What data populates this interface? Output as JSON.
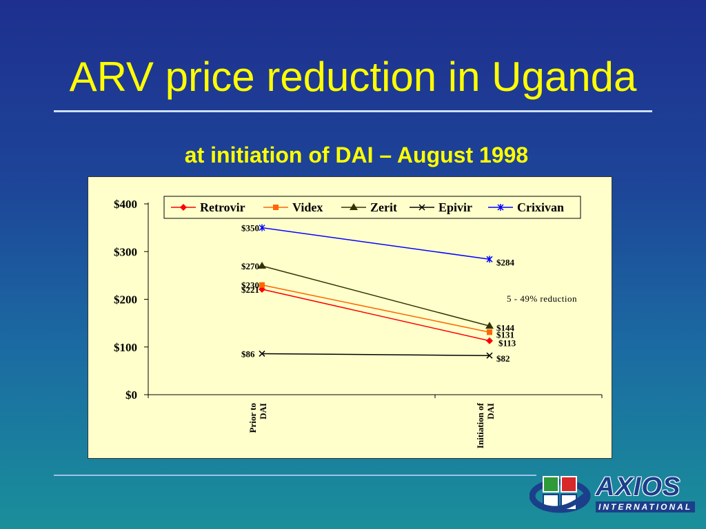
{
  "slide": {
    "title": "ARV price reduction in Uganda",
    "subtitle": "at initiation of DAI – August 1998"
  },
  "logo": {
    "name": "AXIOS",
    "tagline": "INTERNATIONAL"
  },
  "colors": {
    "background_top": "#1e2f8f",
    "background_bottom": "#1a8f9a",
    "title": "#ffff00",
    "panel": "#ffffcc"
  },
  "chart_data": {
    "type": "line",
    "categories": [
      "Prior to DAI",
      "Initiation of DAI"
    ],
    "ylim": [
      0,
      400
    ],
    "yticks": [
      "$0",
      "$100",
      "$200",
      "$300",
      "$400"
    ],
    "ytick_values": [
      0,
      100,
      200,
      300,
      400
    ],
    "legend_position": "top",
    "annotation": "5 - 49% reduction",
    "series": [
      {
        "name": "Retrovir",
        "values": [
          221,
          113
        ],
        "labels": [
          "$221",
          "$113"
        ],
        "color": "#ff0000",
        "marker": "diamond"
      },
      {
        "name": "Videx",
        "values": [
          230,
          131
        ],
        "labels": [
          "$230",
          "$131"
        ],
        "color": "#ff6600",
        "marker": "square"
      },
      {
        "name": "Zerit",
        "values": [
          270,
          144
        ],
        "labels": [
          "$270",
          "$144"
        ],
        "color": "#333300",
        "marker": "triangle"
      },
      {
        "name": "Epivir",
        "values": [
          86,
          82
        ],
        "labels": [
          "$86",
          "$82"
        ],
        "color": "#000000",
        "marker": "x"
      },
      {
        "name": "Crixivan",
        "values": [
          350,
          284
        ],
        "labels": [
          "$350",
          "$284"
        ],
        "color": "#0000ff",
        "marker": "asterisk"
      }
    ]
  }
}
